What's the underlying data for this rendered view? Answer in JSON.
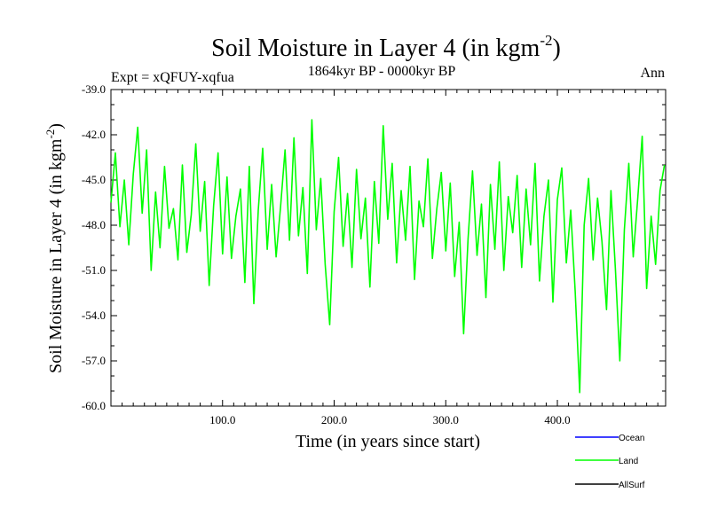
{
  "chart_data": {
    "type": "line",
    "title": "Soil Moisture in Layer 4 (in kgm",
    "title_sup": "-2",
    "title_close": ")",
    "subtitle": "1864kyr BP - 0000kyr BP",
    "left_label": "Expt = xQFUY-xqfua",
    "right_label": "Ann",
    "xlabel": "Time (in years since start)",
    "ylabel": "Soil Moisture in Layer 4 (in kgm",
    "ylabel_sup": "-2",
    "ylabel_close": ")",
    "xlim": [
      0,
      497
    ],
    "ylim": [
      -60.0,
      -39.0
    ],
    "x_ticks": [
      100,
      200,
      300,
      400
    ],
    "x_tick_labels": [
      "100.0",
      "200.0",
      "300.0",
      "400.0"
    ],
    "y_ticks": [
      -39,
      -42,
      -45,
      -48,
      -51,
      -54,
      -57,
      -60
    ],
    "y_tick_labels": [
      "-39.0",
      "-42.0",
      "-45.0",
      "-48.0",
      "-51.0",
      "-54.0",
      "-57.0",
      "-60.0"
    ],
    "legend_position": "bottom-right",
    "series": [
      {
        "name": "Ocean",
        "color": "#0000ff",
        "values": []
      },
      {
        "name": "Land",
        "color": "#00ff00",
        "x": [
          0,
          4,
          8,
          12,
          16,
          20,
          24,
          28,
          32,
          36,
          40,
          44,
          48,
          52,
          56,
          60,
          64,
          68,
          72,
          76,
          80,
          84,
          88,
          92,
          96,
          100,
          104,
          108,
          112,
          116,
          120,
          124,
          128,
          132,
          136,
          140,
          144,
          148,
          152,
          156,
          160,
          164,
          168,
          172,
          176,
          180,
          184,
          188,
          192,
          196,
          200,
          204,
          208,
          212,
          216,
          220,
          224,
          228,
          232,
          236,
          240,
          244,
          248,
          252,
          256,
          260,
          264,
          268,
          272,
          276,
          280,
          284,
          288,
          292,
          296,
          300,
          304,
          308,
          312,
          316,
          320,
          324,
          328,
          332,
          336,
          340,
          344,
          348,
          352,
          356,
          360,
          364,
          368,
          372,
          376,
          380,
          384,
          388,
          392,
          396,
          400,
          404,
          408,
          412,
          416,
          420,
          424,
          428,
          432,
          436,
          440,
          444,
          448,
          452,
          456,
          460,
          464,
          468,
          472,
          476,
          480,
          484,
          488,
          492,
          496
        ],
        "values": [
          -46.5,
          -43.2,
          -48.1,
          -45.0,
          -49.3,
          -44.6,
          -41.5,
          -47.2,
          -43.0,
          -51.0,
          -45.8,
          -49.5,
          -44.1,
          -48.2,
          -46.9,
          -50.3,
          -44.0,
          -49.8,
          -47.3,
          -42.6,
          -48.4,
          -45.1,
          -52.0,
          -46.7,
          -43.2,
          -49.9,
          -44.8,
          -50.2,
          -47.4,
          -45.6,
          -51.8,
          -44.1,
          -53.2,
          -47.0,
          -42.9,
          -49.6,
          -45.3,
          -50.1,
          -46.8,
          -43.0,
          -49.0,
          -42.2,
          -48.7,
          -45.5,
          -51.2,
          -41.0,
          -48.3,
          -44.9,
          -50.6,
          -54.6,
          -47.1,
          -43.5,
          -49.4,
          -45.9,
          -50.8,
          -44.3,
          -48.9,
          -46.2,
          -52.1,
          -45.1,
          -49.2,
          -41.4,
          -47.6,
          -43.9,
          -50.5,
          -45.7,
          -49.0,
          -44.1,
          -51.6,
          -46.4,
          -48.1,
          -43.6,
          -50.2,
          -46.9,
          -44.5,
          -49.7,
          -45.2,
          -51.4,
          -47.8,
          -55.2,
          -48.9,
          -44.4,
          -50.0,
          -46.6,
          -52.8,
          -45.3,
          -49.6,
          -43.8,
          -51.0,
          -46.1,
          -48.5,
          -44.7,
          -50.8,
          -45.6,
          -49.3,
          -43.9,
          -51.7,
          -47.4,
          -45.0,
          -53.1,
          -46.3,
          -44.2,
          -50.5,
          -47.0,
          -52.4,
          -59.1,
          -48.0,
          -44.9,
          -50.3,
          -46.2,
          -49.1,
          -53.6,
          -45.7,
          -50.9,
          -57.0,
          -48.3,
          -43.9,
          -50.1,
          -46.2,
          -42.1,
          -52.2,
          -47.4,
          -50.6,
          -45.7,
          -44.0
        ]
      },
      {
        "name": "AllSurf",
        "color": "#000000",
        "values": []
      }
    ]
  }
}
